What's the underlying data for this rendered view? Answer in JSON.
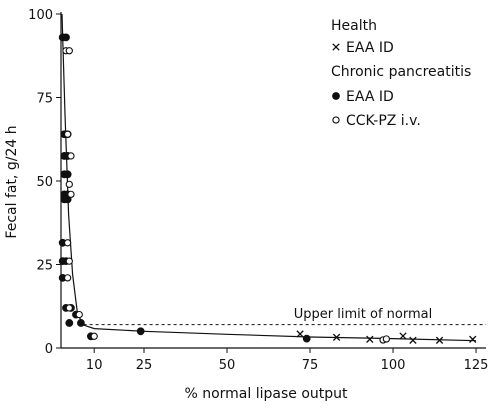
{
  "chart_data": {
    "type": "scatter",
    "xlabel": "% normal lipase output",
    "ylabel": "Fecal fat, g/24 h",
    "xlim": [
      0,
      128
    ],
    "ylim": [
      0,
      100
    ],
    "x_ticks": [
      10,
      25,
      50,
      75,
      100,
      125
    ],
    "y_ticks": [
      0,
      25,
      50,
      75,
      100
    ],
    "grid": false,
    "legend_position": "top-right",
    "legend": {
      "group1": "Health",
      "group2": "Chronic pancreatitis"
    },
    "reference_line": {
      "label": "Upper limit of normal",
      "y": 7
    },
    "series": [
      {
        "name": "EAA ID",
        "group": "Health",
        "marker": "x",
        "points": [
          [
            72,
            4.2
          ],
          [
            83,
            3.2
          ],
          [
            93,
            2.6
          ],
          [
            103,
            3.6
          ],
          [
            106,
            2.3
          ],
          [
            114,
            2.3
          ],
          [
            124,
            2.6
          ]
        ]
      },
      {
        "name": "EAA ID",
        "group": "Chronic pancreatitis",
        "marker": "filled-circle",
        "points": [
          [
            0.5,
            93
          ],
          [
            1.5,
            93
          ],
          [
            1,
            64
          ],
          [
            2,
            64
          ],
          [
            1,
            57.5
          ],
          [
            2,
            57.5
          ],
          [
            1,
            52
          ],
          [
            2,
            52
          ],
          [
            1,
            46
          ],
          [
            2,
            46
          ],
          [
            1,
            44.5
          ],
          [
            2,
            44.5
          ],
          [
            0.5,
            31.5
          ],
          [
            0.5,
            26
          ],
          [
            1.5,
            26
          ],
          [
            0.5,
            21
          ],
          [
            1.5,
            12
          ],
          [
            3,
            12
          ],
          [
            2.5,
            7.5
          ],
          [
            4.5,
            10
          ],
          [
            6,
            7.5
          ],
          [
            9,
            3.5
          ],
          [
            24,
            5
          ],
          [
            74,
            2.8
          ]
        ]
      },
      {
        "name": "CCK-PZ i.v.",
        "group": "Chronic pancreatitis",
        "marker": "open-circle",
        "points": [
          [
            1.5,
            89
          ],
          [
            2.5,
            89
          ],
          [
            2,
            64
          ],
          [
            3,
            57.5
          ],
          [
            2.5,
            49
          ],
          [
            3,
            46
          ],
          [
            2,
            31.5
          ],
          [
            2.5,
            26
          ],
          [
            2,
            21
          ],
          [
            2.5,
            12
          ],
          [
            5.5,
            10
          ],
          [
            10,
            3.5
          ],
          [
            97,
            2.4
          ],
          [
            98,
            2.7
          ]
        ]
      }
    ],
    "fit_curve": [
      [
        0.3,
        100
      ],
      [
        1.2,
        70
      ],
      [
        2.3,
        40
      ],
      [
        3.5,
        22
      ],
      [
        5,
        10
      ],
      [
        7,
        6.8
      ],
      [
        10,
        5.8
      ],
      [
        25,
        5
      ],
      [
        50,
        4.1
      ],
      [
        75,
        3.3
      ],
      [
        100,
        2.8
      ],
      [
        125,
        2.2
      ]
    ]
  }
}
